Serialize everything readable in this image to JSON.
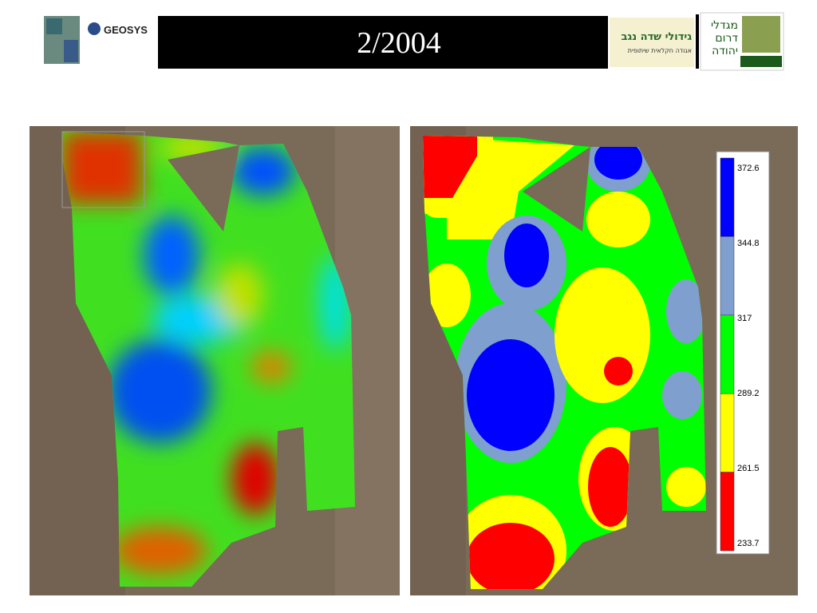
{
  "header": {
    "logo_text": "GEOSYS",
    "title": "2/2004",
    "partner_logo_1": [
      "גידולי שדה נגב",
      "אגודה חקלאית שיתופית"
    ],
    "partner_logo_2": [
      "מגדלי",
      "דרום",
      "יהודה"
    ]
  },
  "legend": {
    "labels": [
      "372.6",
      "344.8",
      "317",
      "289.2",
      "261.5",
      "233.7"
    ],
    "colors": [
      "#0000ff",
      "#7f9fcf",
      "#00ff00",
      "#ffff00",
      "#ff0000"
    ]
  }
}
